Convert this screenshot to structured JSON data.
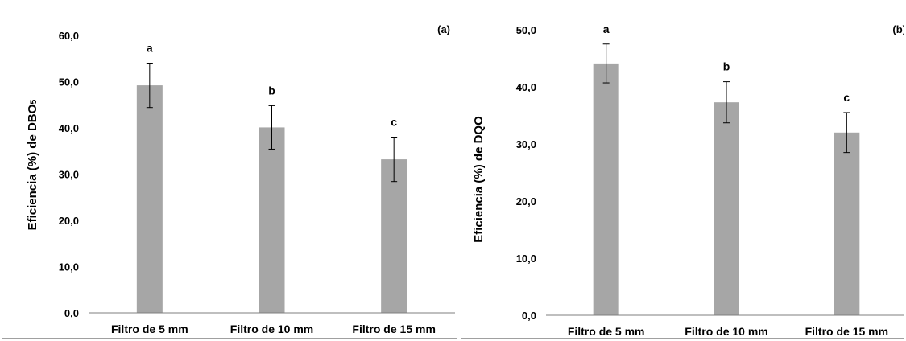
{
  "chart_data": [
    {
      "type": "bar",
      "panel_label": "(a)",
      "categories": [
        "Filtro de 5 mm",
        "Filtro de 10 mm",
        "Filtro de 15 mm"
      ],
      "values": [
        49.2,
        40.1,
        33.2
      ],
      "errors": [
        4.8,
        4.7,
        4.8
      ],
      "group_letters": [
        "a",
        "b",
        "c"
      ],
      "ylabel_main": "Eficiencia (%)  de DBO",
      "ylabel_sub": "5",
      "ylim": [
        0,
        60
      ],
      "yticks": [
        "0,0",
        "10,0",
        "20,0",
        "30,0",
        "40,0",
        "50,0",
        "60,0"
      ],
      "bar_color": "#a6a6a6",
      "grid": false
    },
    {
      "type": "bar",
      "panel_label": "(b)",
      "categories": [
        "Filtro de 5 mm",
        "Filtro de 10 mm",
        "Filtro de 15 mm"
      ],
      "values": [
        44.1,
        37.3,
        32.0
      ],
      "errors": [
        3.4,
        3.6,
        3.5
      ],
      "group_letters": [
        "a",
        "b",
        "c"
      ],
      "ylabel_main": "Eficiencia (%) de DQO",
      "ylabel_sub": "",
      "ylim": [
        0,
        50
      ],
      "yticks": [
        "0,0",
        "10,0",
        "20,0",
        "30,0",
        "40,0",
        "50,0"
      ],
      "bar_color": "#a6a6a6",
      "grid": false
    }
  ]
}
